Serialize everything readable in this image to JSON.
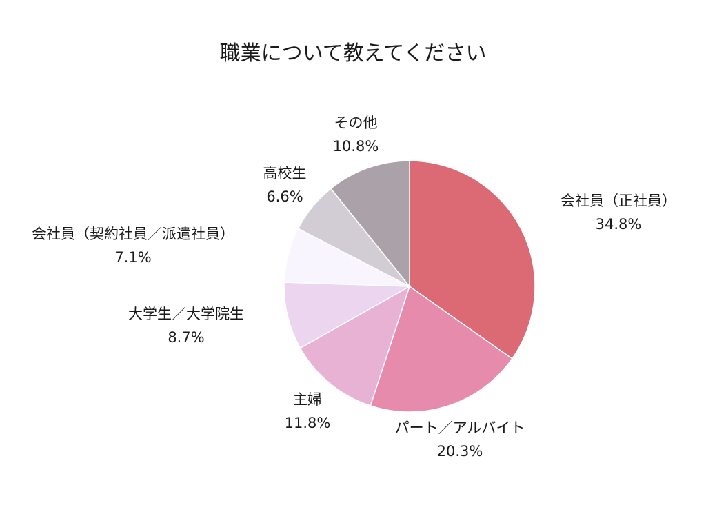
{
  "chart_data": {
    "type": "pie",
    "title": "職業について教えてください",
    "start_angle_deg": 0,
    "direction": "clockwise",
    "slices": [
      {
        "label": "会社員（正社員）",
        "value": 34.8,
        "percent_label": "34.8%",
        "color": "#dc6a75"
      },
      {
        "label": "パート／アルバイト",
        "value": 20.3,
        "percent_label": "20.3%",
        "color": "#e78bad"
      },
      {
        "label": "主婦",
        "value": 11.8,
        "percent_label": "11.8%",
        "color": "#e8b2d5"
      },
      {
        "label": "大学生／大学院生",
        "value": 8.7,
        "percent_label": "8.7%",
        "color": "#ebd5ef"
      },
      {
        "label": "会社員（契約社員／派遣社員）",
        "value": 7.1,
        "percent_label": "7.1%",
        "color": "#f8f5fe"
      },
      {
        "label": "高校生",
        "value": 6.6,
        "percent_label": "6.6%",
        "color": "#d2cdd5"
      },
      {
        "label": "その他",
        "value": 10.8,
        "percent_label": "10.8%",
        "color": "#aba1a9"
      }
    ]
  }
}
